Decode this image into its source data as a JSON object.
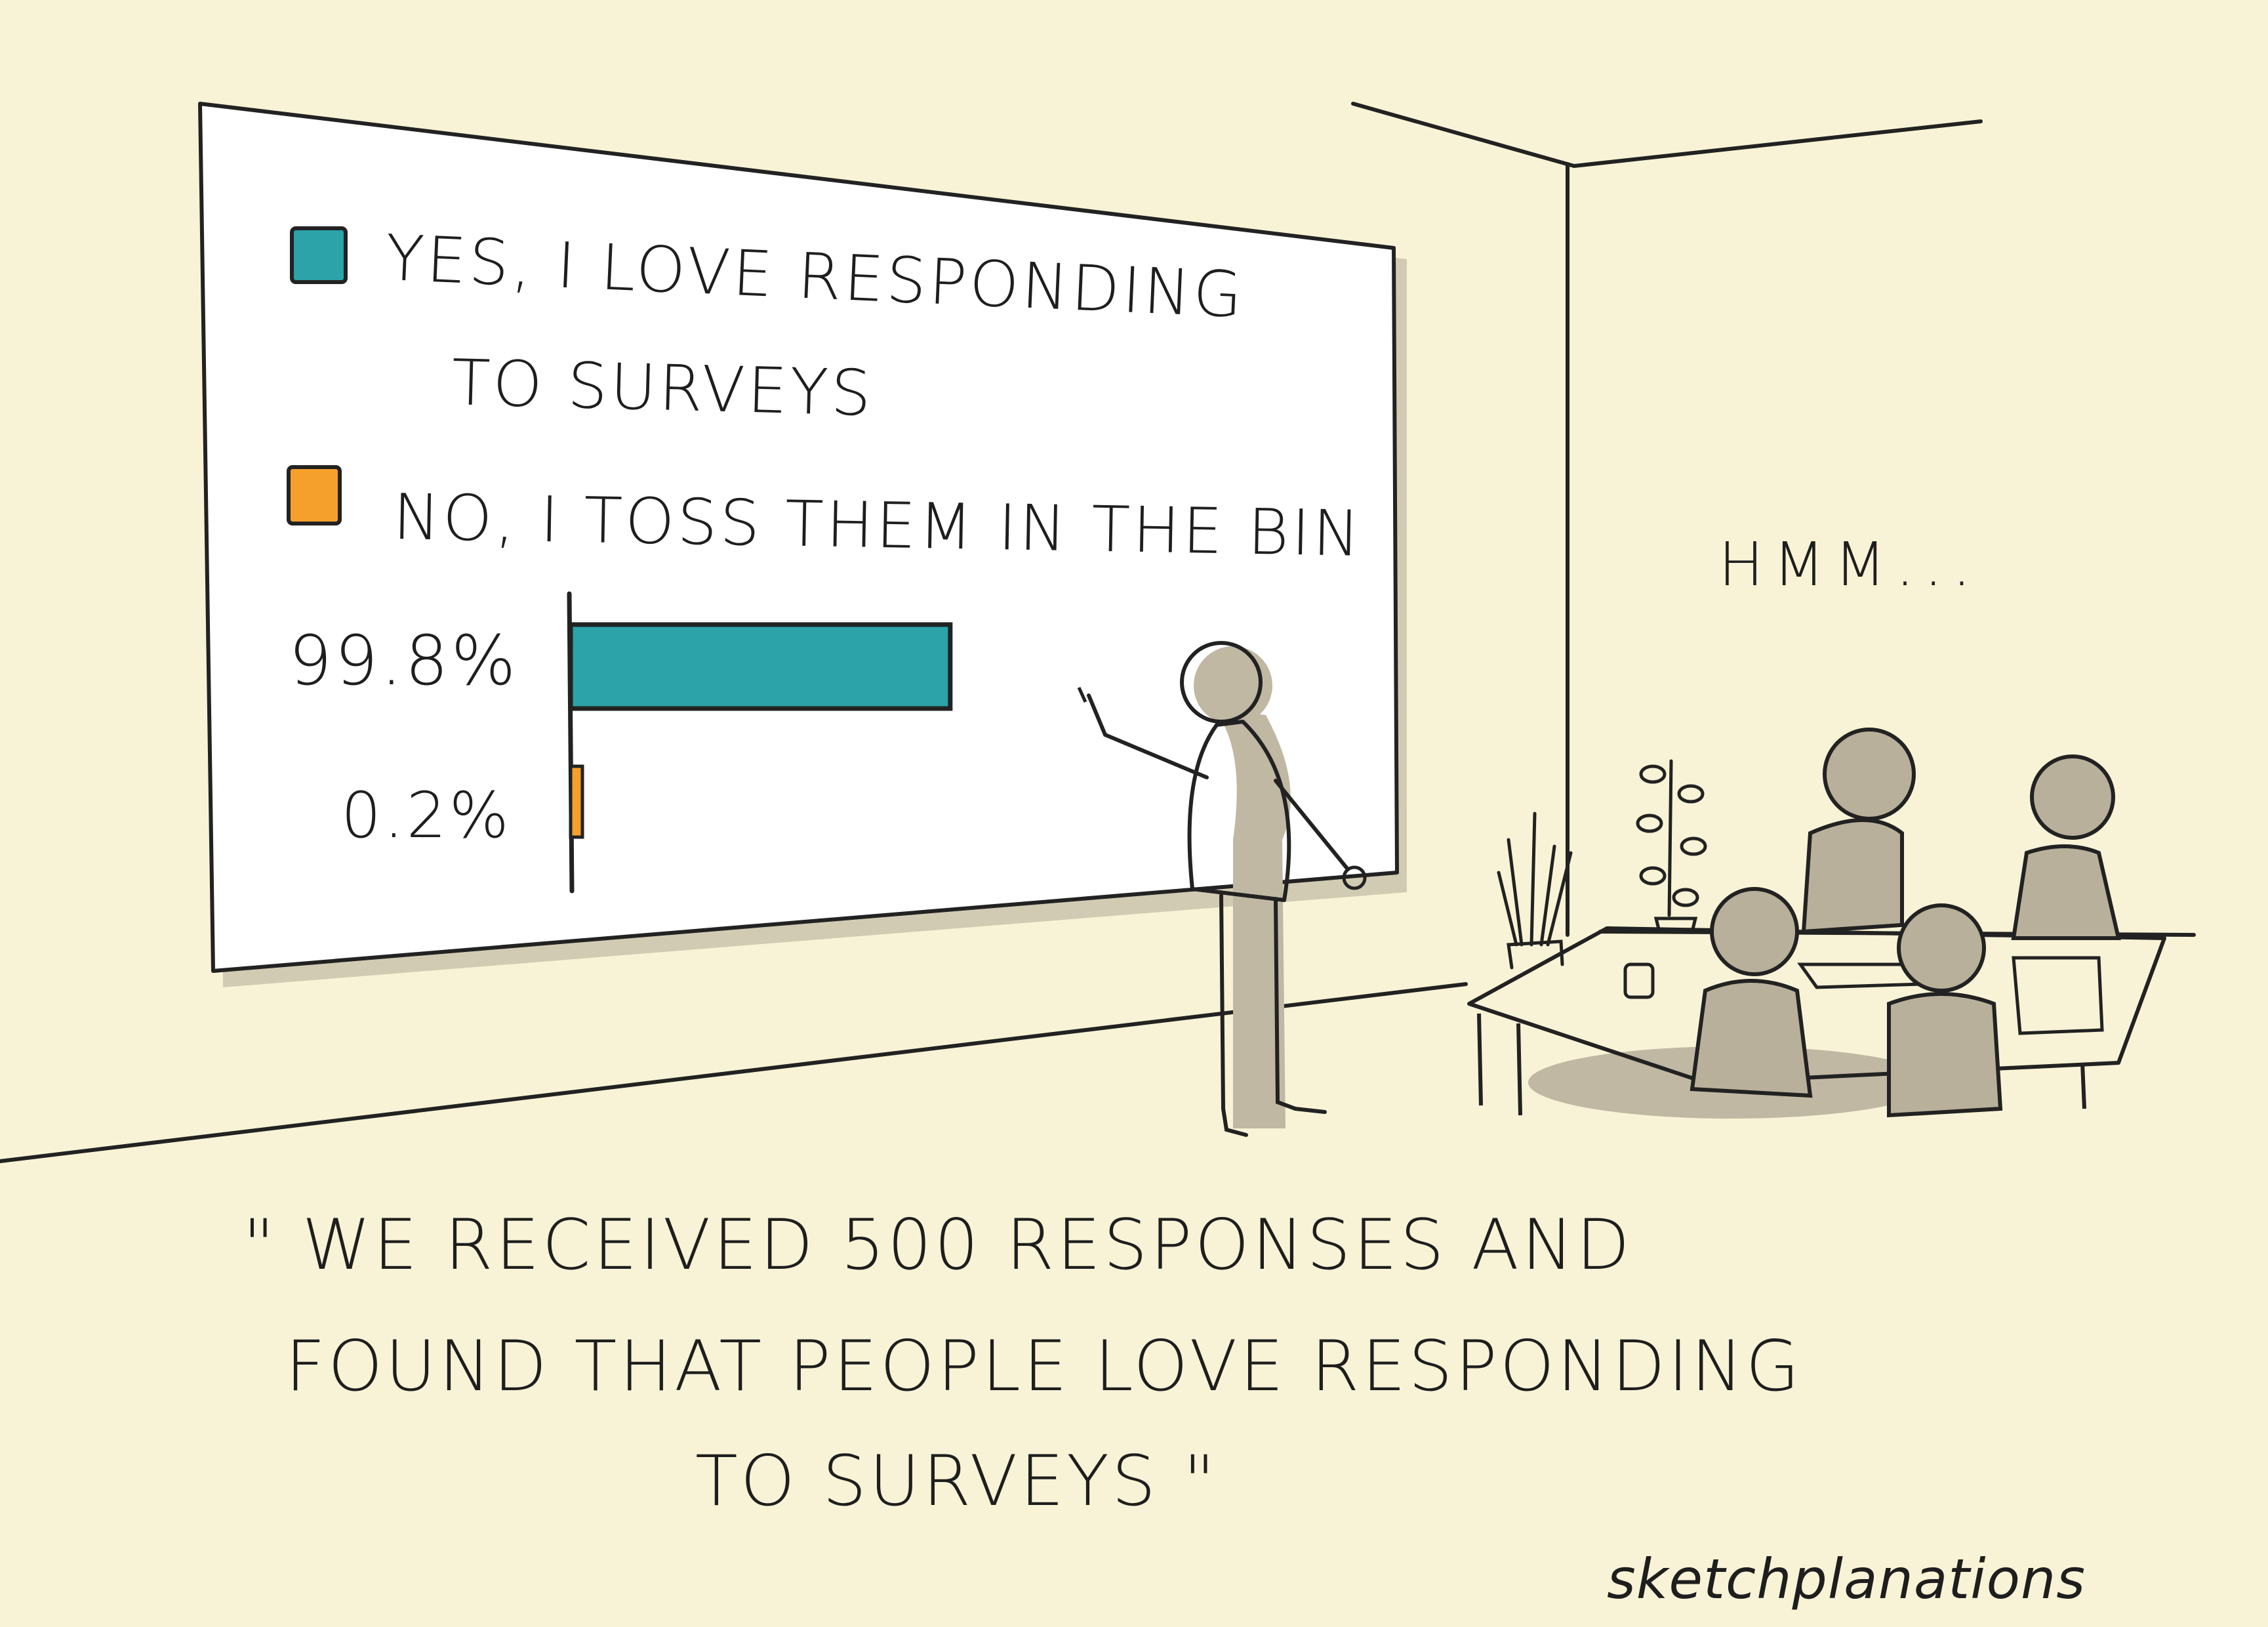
{
  "legend": {
    "yes_line_1": "YES, I LOVE RESPONDING",
    "yes_line_2": "TO SURVEYS",
    "no": "NO, I TOSS THEM IN THE BIN"
  },
  "chart_data": {
    "type": "bar",
    "orientation": "horizontal",
    "categories": [
      "YES, I LOVE RESPONDING TO SURVEYS",
      "NO, I TOSS THEM IN THE BIN"
    ],
    "values": [
      99.8,
      0.2
    ],
    "value_labels": [
      "99.8%",
      "0.2%"
    ],
    "colors": [
      "#2ba3a8",
      "#f5a02c"
    ],
    "xlim": [
      0,
      100
    ],
    "grid": false,
    "legend_position": "top"
  },
  "speech": {
    "hmm": "HMM..."
  },
  "caption": {
    "line_1": "\" WE RECEIVED 500 RESPONSES AND",
    "line_2": "FOUND THAT PEOPLE LOVE RESPONDING",
    "line_3": "TO SURVEYS \""
  },
  "brand": "sketchplanations",
  "colors": {
    "background": "#f8f3d6",
    "screen": "#ffffff",
    "yes_bar": "#2ba3a8",
    "no_bar": "#f5a02c",
    "shadow": "#c0b8a3",
    "ink": "#1d1d1d"
  }
}
